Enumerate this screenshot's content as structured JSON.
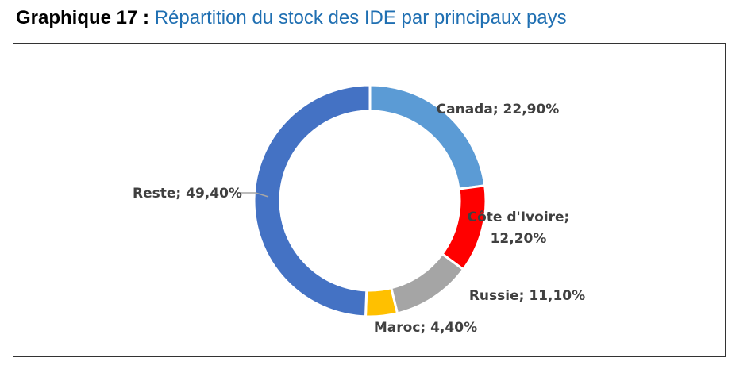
{
  "heading": {
    "prefix": "Graphique 17",
    "separator": ":",
    "title": "Répartition du stock des IDE par principaux pays"
  },
  "chart_data": {
    "type": "pie",
    "variant": "doughnut",
    "title": "Répartition du stock des IDE par principaux pays",
    "slices": [
      {
        "name": "Canada",
        "value": 22.9,
        "label_lines": [
          "Canada; 22,90%"
        ],
        "color": "#5B9BD5"
      },
      {
        "name": "Côte d'Ivoire",
        "value": 12.2,
        "label_lines": [
          "Côte d'Ivoire;",
          "12,20%"
        ],
        "color": "#FF0000"
      },
      {
        "name": "Russie",
        "value": 11.1,
        "label_lines": [
          "Russie; 11,10%"
        ],
        "color": "#A5A5A5"
      },
      {
        "name": "Maroc",
        "value": 4.4,
        "label_lines": [
          "Maroc; 4,40%"
        ],
        "color": "#FFC000"
      },
      {
        "name": "Reste",
        "value": 49.4,
        "label_lines": [
          "Reste; 49,40%"
        ],
        "color": "#4472C4"
      }
    ],
    "unit": "%",
    "legend": "none"
  }
}
